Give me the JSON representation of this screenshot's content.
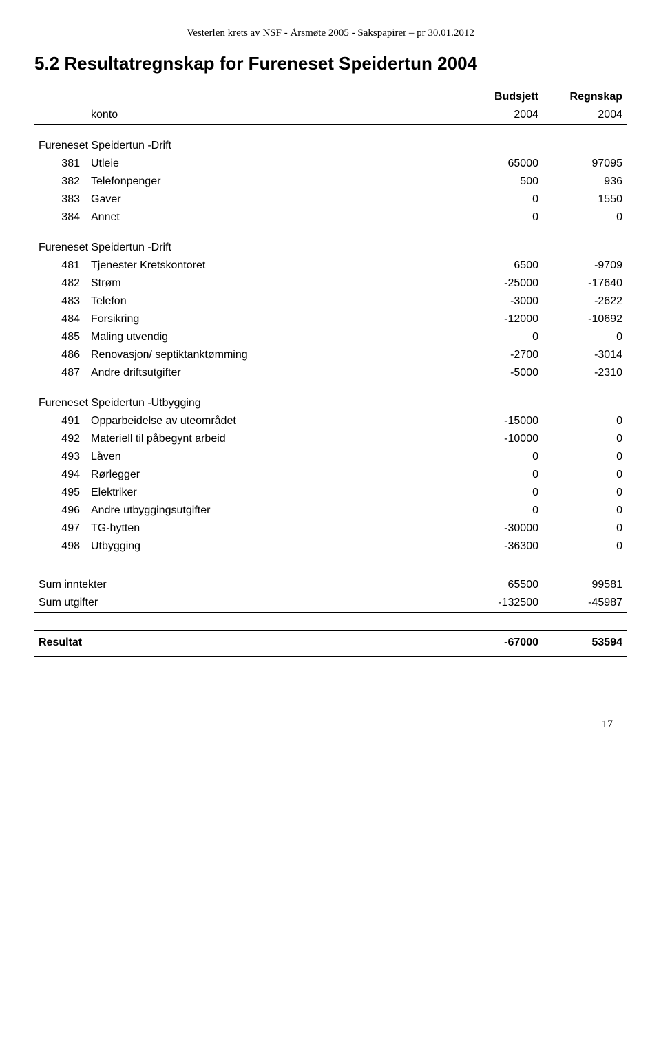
{
  "header": "Vesterlen krets av NSF - Årsmøte 2005 - Sakspapirer – pr 30.01.2012",
  "title": "5.2  Resultatregnskap for Fureneset Speidertun 2004",
  "columns": {
    "konto": "konto",
    "budsjett": "Budsjett",
    "regnskap": "Regnskap",
    "year1": "2004",
    "year2": "2004"
  },
  "sections": [
    {
      "label": "Fureneset Speidertun  -Drift",
      "rows": [
        {
          "code": "381",
          "label": "Utleie",
          "v1": "65000",
          "v2": "97095"
        },
        {
          "code": "382",
          "label": "Telefonpenger",
          "v1": "500",
          "v2": "936"
        },
        {
          "code": "383",
          "label": "Gaver",
          "v1": "0",
          "v2": "1550"
        },
        {
          "code": "384",
          "label": "Annet",
          "v1": "0",
          "v2": "0"
        }
      ]
    },
    {
      "label": "Fureneset Speidertun  -Drift",
      "rows": [
        {
          "code": "481",
          "label": "Tjenester Kretskontoret",
          "v1": "6500",
          "v2": "-9709"
        },
        {
          "code": "482",
          "label": "Strøm",
          "v1": "-25000",
          "v2": "-17640"
        },
        {
          "code": "483",
          "label": "Telefon",
          "v1": "-3000",
          "v2": "-2622"
        },
        {
          "code": "484",
          "label": "Forsikring",
          "v1": "-12000",
          "v2": "-10692"
        },
        {
          "code": "485",
          "label": "Maling utvendig",
          "v1": "0",
          "v2": "0"
        },
        {
          "code": "486",
          "label": "Renovasjon/ septiktanktømming",
          "v1": "-2700",
          "v2": "-3014"
        },
        {
          "code": "487",
          "label": "Andre driftsutgifter",
          "v1": "-5000",
          "v2": "-2310"
        }
      ]
    },
    {
      "label": "Fureneset Speidertun  -Utbygging",
      "rows": [
        {
          "code": "491",
          "label": "Opparbeidelse av uteområdet",
          "v1": "-15000",
          "v2": "0"
        },
        {
          "code": "492",
          "label": "Materiell til påbegynt arbeid",
          "v1": "-10000",
          "v2": "0"
        },
        {
          "code": "493",
          "label": "Låven",
          "v1": "0",
          "v2": "0"
        },
        {
          "code": "494",
          "label": "Rørlegger",
          "v1": "0",
          "v2": "0"
        },
        {
          "code": "495",
          "label": "Elektriker",
          "v1": "0",
          "v2": "0"
        },
        {
          "code": "496",
          "label": "Andre utbyggingsutgifter",
          "v1": "0",
          "v2": "0"
        },
        {
          "code": "497",
          "label": "TG-hytten",
          "v1": "-30000",
          "v2": "0"
        },
        {
          "code": "498",
          "label": "Utbygging",
          "v1": "-36300",
          "v2": "0"
        }
      ]
    }
  ],
  "sums": [
    {
      "label": "Sum inntekter",
      "v1": "65500",
      "v2": "99581"
    },
    {
      "label": "Sum utgifter",
      "v1": "-132500",
      "v2": "-45987"
    }
  ],
  "result": {
    "label": "Resultat",
    "v1": "-67000",
    "v2": "53594"
  },
  "pageNumber": "17"
}
